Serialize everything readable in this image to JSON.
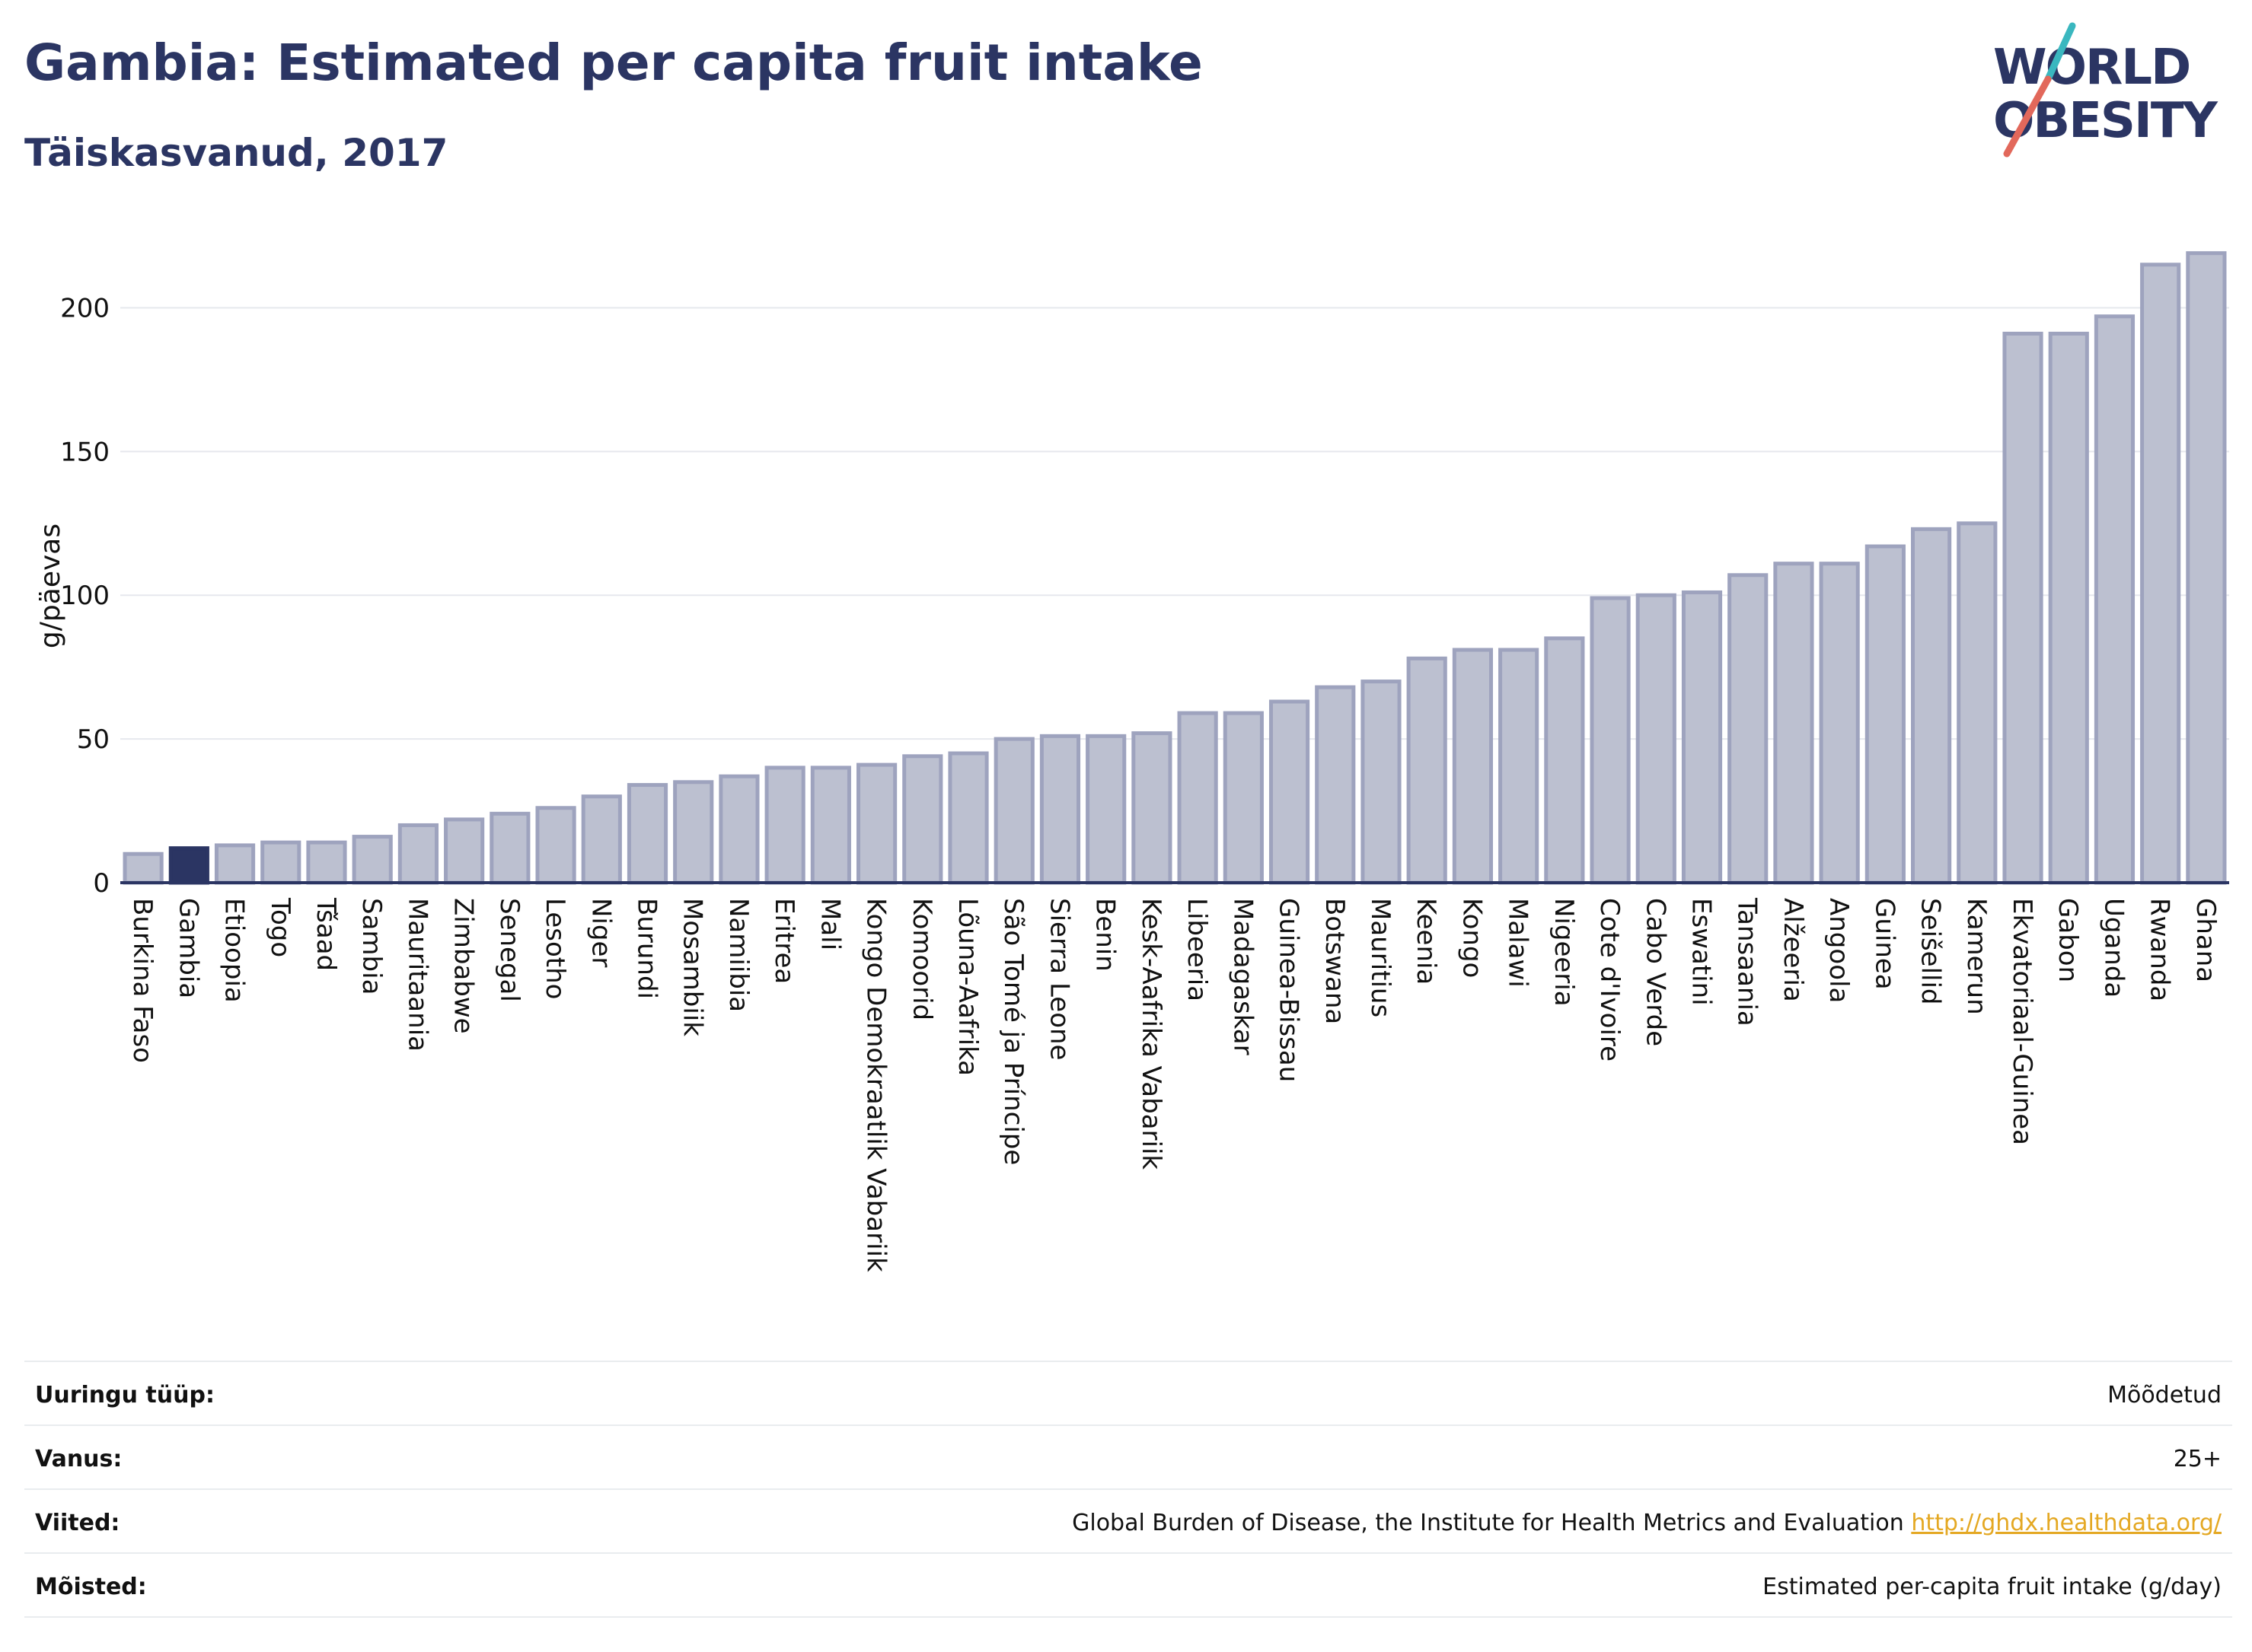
{
  "header": {
    "title": "Gambia: Estimated per capita fruit intake",
    "subtitle": "Täiskasvanud, 2017"
  },
  "logo": {
    "line1": "WORLD",
    "line2": "OBESITY",
    "colors": {
      "text": "#2b3563",
      "slash_teal": "#3ab7bf",
      "slash_red": "#e2685b"
    }
  },
  "chart_data": {
    "type": "bar",
    "ylabel": "g/päevas",
    "ylim": [
      0,
      225
    ],
    "yticks": [
      0,
      50,
      100,
      150,
      200
    ],
    "grid": true,
    "highlight": "Gambia",
    "colors": {
      "bar": "#bcc0d0",
      "bar_edge": "#9ea3be",
      "highlight": "#2b3563",
      "axis": "#2b3563"
    },
    "categories": [
      "Burkina Faso",
      "Gambia",
      "Etioopia",
      "Togo",
      "Tšaad",
      "Sambia",
      "Mauritaania",
      "Zimbabwe",
      "Senegal",
      "Lesotho",
      "Niger",
      "Burundi",
      "Mosambiik",
      "Namiibia",
      "Eritrea",
      "Mali",
      "Kongo Demokraatlik Vabariik",
      "Komoorid",
      "Lõuna-Aafrika",
      "São Tomé ja Príncipe",
      "Sierra Leone",
      "Benin",
      "Kesk-Aafrika Vabariik",
      "Libeeria",
      "Madagaskar",
      "Guinea-Bissau",
      "Botswana",
      "Mauritius",
      "Keenia",
      "Kongo",
      "Malawi",
      "Nigeeria",
      "Cote d'Ivoire",
      "Cabo Verde",
      "Eswatini",
      "Tansaania",
      "Alžeeria",
      "Angoola",
      "Guinea",
      "Seišellid",
      "Kamerun",
      "Ekvatoriaal-Guinea",
      "Gabon",
      "Uganda",
      "Rwanda",
      "Ghana"
    ],
    "values": [
      10,
      12,
      13,
      14,
      14,
      16,
      20,
      22,
      24,
      26,
      30,
      34,
      35,
      37,
      40,
      40,
      41,
      44,
      45,
      50,
      51,
      51,
      52,
      59,
      59,
      63,
      68,
      70,
      78,
      81,
      81,
      85,
      99,
      100,
      101,
      107,
      111,
      111,
      117,
      123,
      125,
      191,
      191,
      197,
      215,
      219
    ]
  },
  "info": [
    {
      "label": "Uuringu tüüp:",
      "value": "Mõõdetud"
    },
    {
      "label": "Vanus:",
      "value": "25+"
    },
    {
      "label": "Viited:",
      "value": "Global Burden of Disease, the Institute for Health Metrics and Evaluation",
      "link": "http://ghdx.healthdata.org/"
    },
    {
      "label": "Mõisted:",
      "value": "Estimated per-capita fruit intake (g/day)"
    }
  ]
}
